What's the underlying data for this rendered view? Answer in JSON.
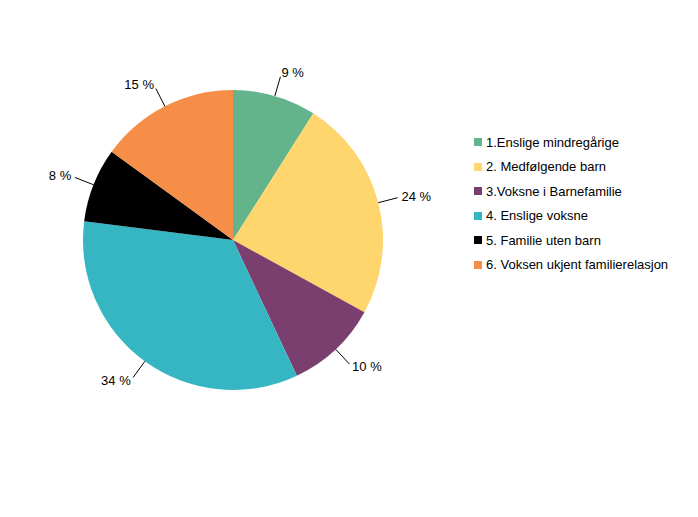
{
  "chart_data": {
    "type": "pie",
    "categories": [
      "1.Enslige mindregårige",
      "2. Medfølgende barn",
      "3.Voksne i Barnefamilie",
      "4. Enslige voksne",
      "5. Familie uten barn",
      "6. Voksen ukjent familierelasjon"
    ],
    "values": [
      9,
      24,
      10,
      34,
      8,
      15
    ],
    "value_labels": [
      "9 %",
      "24 %",
      "10 %",
      "34 %",
      "8 %",
      "15 %"
    ],
    "colors": [
      "#63b48a",
      "#ffd66e",
      "#7a3e6f",
      "#36b6c2",
      "#000000",
      "#f78e48"
    ],
    "data_labels": true,
    "legend": "right"
  }
}
